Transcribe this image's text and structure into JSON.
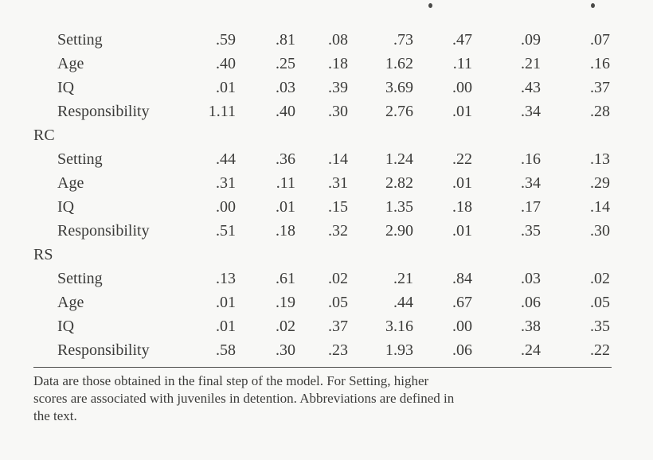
{
  "table": {
    "groups": [
      {
        "name": "",
        "rows": [
          {
            "label": "Setting",
            "values": [
              ".59",
              ".81",
              ".08",
              ".73",
              ".47",
              ".09",
              ".07"
            ]
          },
          {
            "label": "Age",
            "values": [
              ".40",
              ".25",
              ".18",
              "1.62",
              ".11",
              ".21",
              ".16"
            ]
          },
          {
            "label": "IQ",
            "values": [
              ".01",
              ".03",
              ".39",
              "3.69",
              ".00",
              ".43",
              ".37"
            ]
          },
          {
            "label": "Responsibility",
            "values": [
              "1.11",
              ".40",
              ".30",
              "2.76",
              ".01",
              ".34",
              ".28"
            ]
          }
        ]
      },
      {
        "name": "RC",
        "rows": [
          {
            "label": "Setting",
            "values": [
              ".44",
              ".36",
              ".14",
              "1.24",
              ".22",
              ".16",
              ".13"
            ]
          },
          {
            "label": "Age",
            "values": [
              ".31",
              ".11",
              ".31",
              "2.82",
              ".01",
              ".34",
              ".29"
            ]
          },
          {
            "label": "IQ",
            "values": [
              ".00",
              ".01",
              ".15",
              "1.35",
              ".18",
              ".17",
              ".14"
            ]
          },
          {
            "label": "Responsibility",
            "values": [
              ".51",
              ".18",
              ".32",
              "2.90",
              ".01",
              ".35",
              ".30"
            ]
          }
        ]
      },
      {
        "name": "RS",
        "rows": [
          {
            "label": "Setting",
            "values": [
              ".13",
              ".61",
              ".02",
              ".21",
              ".84",
              ".03",
              ".02"
            ]
          },
          {
            "label": "Age",
            "values": [
              ".01",
              ".19",
              ".05",
              ".44",
              ".67",
              ".06",
              ".05"
            ]
          },
          {
            "label": "IQ",
            "values": [
              ".01",
              ".02",
              ".37",
              "3.16",
              ".00",
              ".38",
              ".35"
            ]
          },
          {
            "label": "Responsibility",
            "values": [
              ".58",
              ".30",
              ".23",
              "1.93",
              ".06",
              ".24",
              ".22"
            ]
          }
        ]
      }
    ],
    "footnote_lines": [
      "Data are those obtained in the final step of the model. For Setting, higher",
      "scores are associated with juveniles in detention. Abbreviations are defined in",
      "the text."
    ]
  }
}
